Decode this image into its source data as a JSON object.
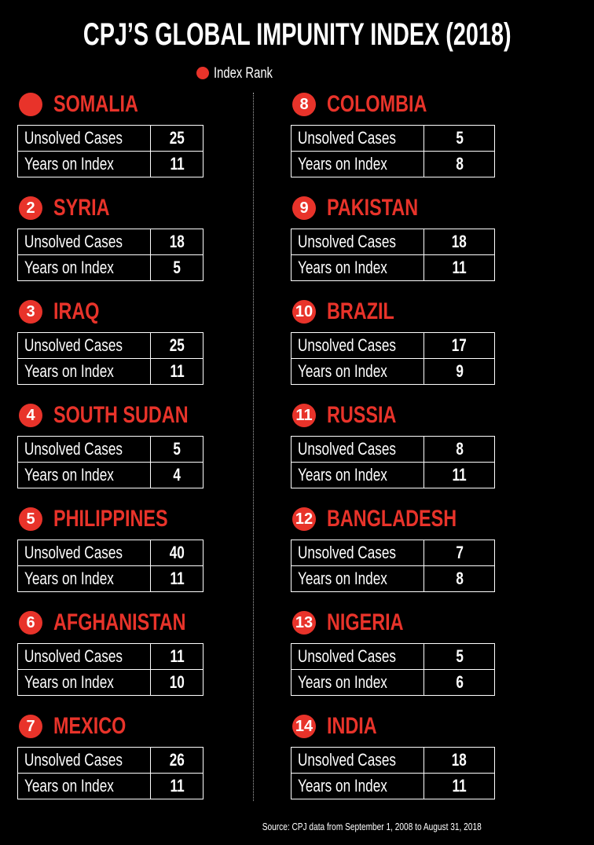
{
  "title": "CPJ’S GLOBAL IMPUNITY INDEX (2018)",
  "legend": "Index Rank",
  "row_labels": [
    "Unsolved Cases",
    "Years on Index"
  ],
  "entries": [
    {
      "country": "SOMALIA",
      "unsolved_cases": 25,
      "years_on_index": 11
    },
    {
      "rank": 2,
      "country": "SYRIA",
      "unsolved_cases": 18,
      "years_on_index": 5
    },
    {
      "rank": 3,
      "country": "IRAQ",
      "unsolved_cases": 25,
      "years_on_index": 11
    },
    {
      "rank": 4,
      "country": "SOUTH SUDAN",
      "unsolved_cases": 5,
      "years_on_index": 4
    },
    {
      "rank": 5,
      "country": "PHILIPPINES",
      "unsolved_cases": 40,
      "years_on_index": 11
    },
    {
      "rank": 6,
      "country": "AFGHANISTAN",
      "unsolved_cases": 11,
      "years_on_index": 10
    },
    {
      "rank": 7,
      "country": "MEXICO",
      "unsolved_cases": 26,
      "years_on_index": 11
    },
    {
      "rank": 8,
      "country": "COLOMBIA",
      "unsolved_cases": 5,
      "years_on_index": 8
    },
    {
      "rank": 9,
      "country": "PAKISTAN",
      "unsolved_cases": 18,
      "years_on_index": 11
    },
    {
      "rank": 10,
      "country": "BRAZIL",
      "unsolved_cases": 17,
      "years_on_index": 9
    },
    {
      "rank": 11,
      "country": "RUSSIA",
      "unsolved_cases": 8,
      "years_on_index": 11
    },
    {
      "rank": 12,
      "country": "BANGLADESH",
      "unsolved_cases": 7,
      "years_on_index": 8
    },
    {
      "rank": 13,
      "country": "NIGERIA",
      "unsolved_cases": 5,
      "years_on_index": 6
    },
    {
      "rank": 14,
      "country": "INDIA",
      "unsolved_cases": 18,
      "years_on_index": 11
    }
  ],
  "source": "Source: CPJ data from September 1, 2008 to August 31, 2018"
}
